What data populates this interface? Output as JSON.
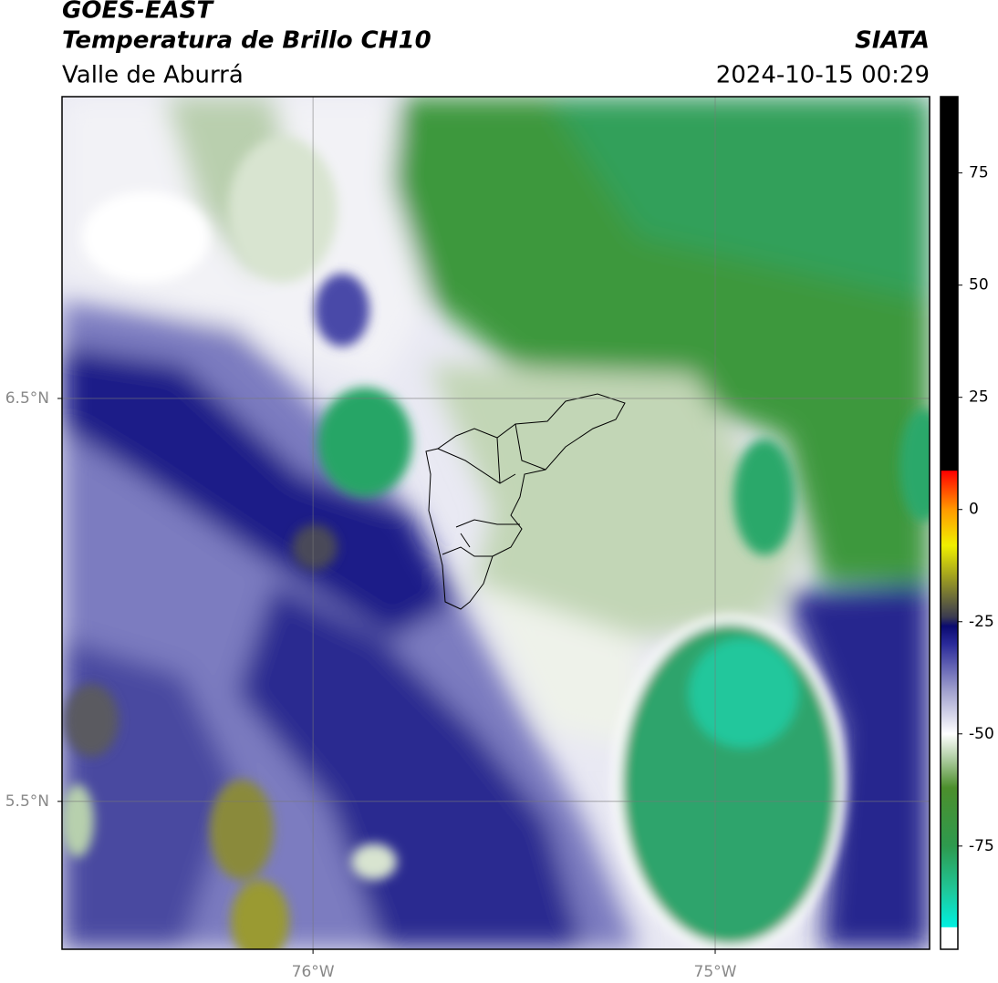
{
  "header": {
    "title": "GOES-EAST",
    "subtitle": "Temperatura de Brillo CH10",
    "region": "Valle de Aburrá",
    "source": "SIATA",
    "timestamp": "2024-10-15 00:29"
  },
  "chart_data": {
    "type": "map",
    "xlim": [
      -76.624,
      -74.467
    ],
    "ylim": [
      5.133,
      7.249
    ],
    "xticks": [
      {
        "value": -76,
        "label": "76°W"
      },
      {
        "value": -75,
        "label": "75°W"
      }
    ],
    "yticks": [
      {
        "value": 6.5,
        "label": "6.5°N"
      },
      {
        "value": 5.5,
        "label": "5.5°N"
      }
    ],
    "grid": true,
    "colorbar": {
      "lim": [
        -98,
        92
      ],
      "ticks": [
        75,
        50,
        25,
        0,
        -25,
        -50,
        -75
      ],
      "stops": [
        {
          "value": -98,
          "color": "#ffffff"
        },
        {
          "value": -93.2,
          "color": "#ffffff"
        },
        {
          "value": -93,
          "color": "#00f0e0"
        },
        {
          "value": -85,
          "color": "#1fc79a"
        },
        {
          "value": -75,
          "color": "#2e9a4e"
        },
        {
          "value": -62,
          "color": "#4c8f2c"
        },
        {
          "value": -56,
          "color": "#a8c99a"
        },
        {
          "value": -50,
          "color": "#ffffff"
        },
        {
          "value": -40,
          "color": "#9c9ccc"
        },
        {
          "value": -30,
          "color": "#2a2a9a"
        },
        {
          "value": -26,
          "color": "#0a0a70"
        },
        {
          "value": -24,
          "color": "#3a3a50"
        },
        {
          "value": -15,
          "color": "#a0a020"
        },
        {
          "value": -8,
          "color": "#f0f000"
        },
        {
          "value": 0,
          "color": "#ff9900"
        },
        {
          "value": 8.6,
          "color": "#ff0000"
        },
        {
          "value": 8.7,
          "color": "#000000"
        },
        {
          "value": 92,
          "color": "#000000"
        }
      ]
    }
  }
}
